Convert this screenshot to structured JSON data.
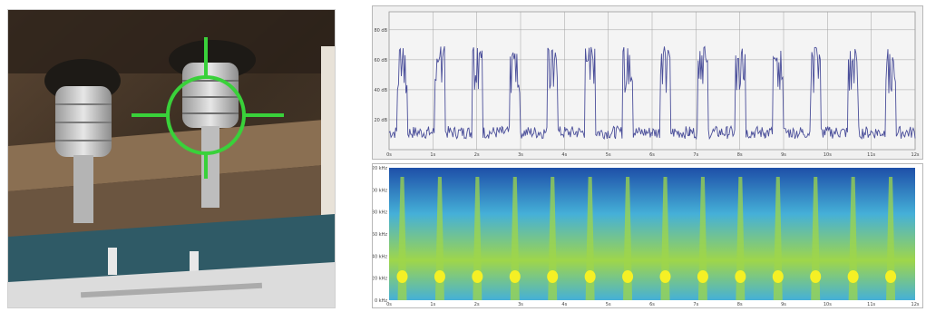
{
  "camera": {
    "crosshair_color": "#39d13a",
    "insulator_color": "#cfcfcf",
    "wall_color": "#2f5a66"
  },
  "waveform": {
    "yticks": [
      "20 dB",
      "40 dB",
      "60 dB",
      "80 dB"
    ],
    "xticks": [
      "0s",
      "1s",
      "2s",
      "3s",
      "4s",
      "5s",
      "6s",
      "7s",
      "8s",
      "9s",
      "10s",
      "11s",
      "12s"
    ],
    "line_color": "#4b4f9a",
    "grid_color": "#a0a0a0"
  },
  "spectrogram": {
    "yticks": [
      "0 kHz",
      "20 kHz",
      "40 kHz",
      "60 kHz",
      "80 kHz",
      "100 kHz",
      "120 kHz"
    ],
    "xticks": [
      "0s",
      "1s",
      "2s",
      "3s",
      "4s",
      "5s",
      "6s",
      "7s",
      "8s",
      "9s",
      "10s",
      "11s",
      "12s"
    ],
    "colors": {
      "low": "#1e4fa8",
      "mid": "#45b0d8",
      "high": "#9fd64a",
      "peak": "#f5f025"
    }
  }
}
